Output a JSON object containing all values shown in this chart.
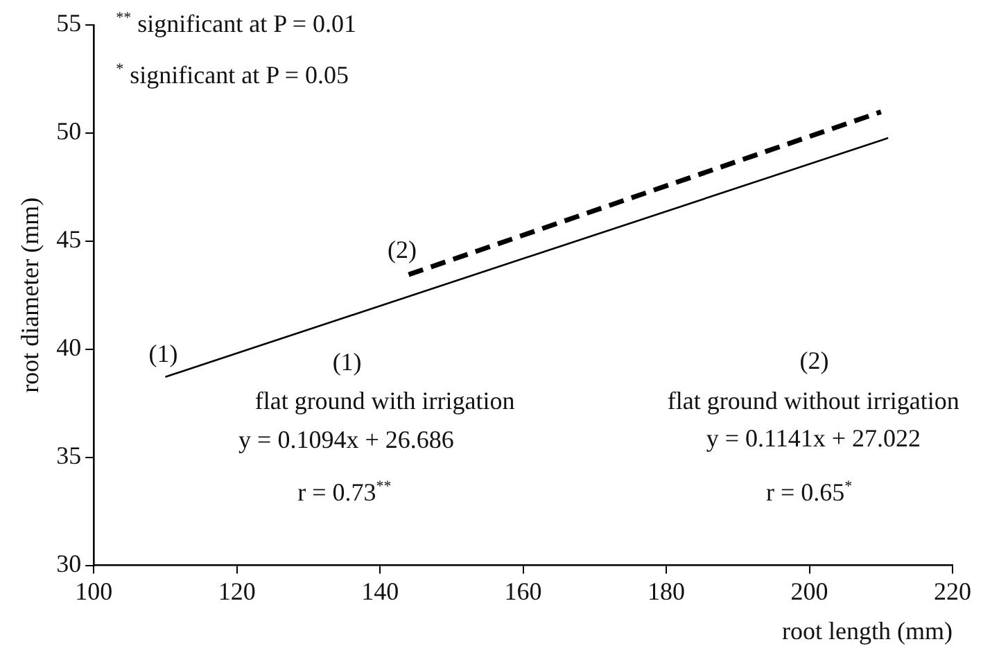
{
  "chart_data": {
    "type": "line",
    "xlabel": "root length (mm)",
    "ylabel": "root diameter (mm)",
    "xlim": [
      100,
      220
    ],
    "xticks": [
      100,
      120,
      140,
      160,
      180,
      200,
      220
    ],
    "ylim": [
      30,
      55
    ],
    "yticks": [
      30,
      35,
      40,
      45,
      50,
      55
    ],
    "legend": false,
    "marker": "none",
    "series": [
      {
        "color": "#000000",
        "line_style": "solid",
        "x": [
          110,
          211
        ],
        "values": [
          38.72,
          49.77
        ]
      },
      {
        "color": "#000000",
        "line_style": "dashed",
        "x": [
          144,
          210
        ],
        "values": [
          43.45,
          50.98
        ]
      }
    ],
    "annotations": [
      "$^{**}$ significant at P = 0.01",
      "$^{*}$ significant at P = 0.05",
      "(1)",
      "(2)",
      "(1)",
      "flat ground with irrigation",
      "y = 0.1094x + 26.686",
      "r = 0.73$^{**}$",
      "(2)",
      "flat ground without irrigation",
      "y = 0.1141x + 27.022",
      "r = 0.65$^{*}$"
    ]
  }
}
